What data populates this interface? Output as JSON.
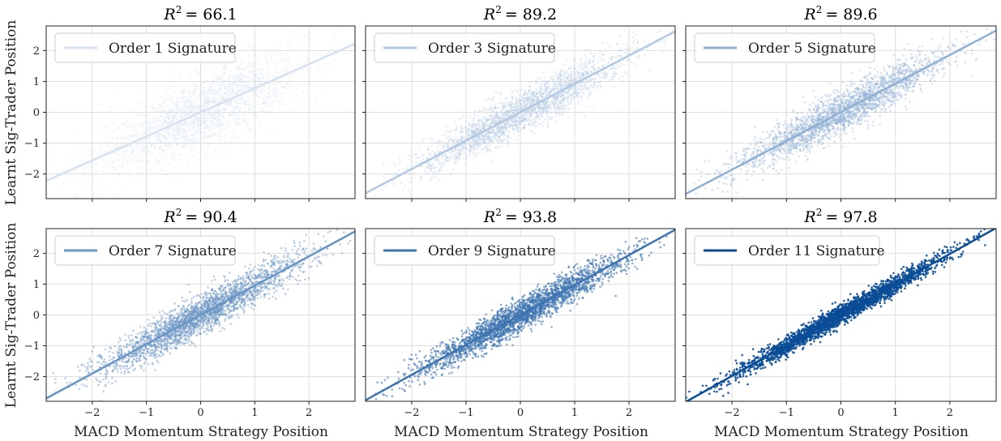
{
  "figure": {
    "ylabel": "Learnt Sig-Trader Position",
    "xlabel": "MACD Momentum Strategy Position"
  },
  "chart_data": [
    {
      "type": "scatter",
      "title_prefix": "R",
      "title_sup": "2",
      "title_value": "= 66.1",
      "legend": "Order 1 Signature",
      "r2": 66.1,
      "slope": 0.78,
      "color": "#d6e2ef",
      "alpha": 0.25,
      "xlim": [
        -2.85,
        2.85
      ],
      "ylim": [
        -2.8,
        2.8
      ],
      "xticks": [
        -2,
        -1,
        0,
        1,
        2
      ],
      "yticks": [
        -2,
        -1,
        0,
        1,
        2
      ],
      "grid": true,
      "legend_loc": "upper-left"
    },
    {
      "type": "scatter",
      "title_prefix": "R",
      "title_sup": "2",
      "title_value": "= 89.2",
      "legend": "Order 3 Signature",
      "r2": 89.2,
      "slope": 0.92,
      "color": "#b3c9e1",
      "alpha": 0.3,
      "xlim": [
        -2.85,
        2.85
      ],
      "ylim": [
        -2.8,
        2.8
      ],
      "xticks": [
        -2,
        -1,
        0,
        1,
        2
      ],
      "yticks": [
        -2,
        -1,
        0,
        1,
        2
      ],
      "grid": true,
      "legend_loc": "upper-left"
    },
    {
      "type": "scatter",
      "title_prefix": "R",
      "title_sup": "2",
      "title_value": "= 89.6",
      "legend": "Order 5 Signature",
      "r2": 89.6,
      "slope": 0.93,
      "color": "#90b0d3",
      "alpha": 0.35,
      "xlim": [
        -2.85,
        2.85
      ],
      "ylim": [
        -2.8,
        2.8
      ],
      "xticks": [
        -2,
        -1,
        0,
        1,
        2
      ],
      "yticks": [
        -2,
        -1,
        0,
        1,
        2
      ],
      "grid": true,
      "legend_loc": "upper-left"
    },
    {
      "type": "scatter",
      "title_prefix": "R",
      "title_sup": "2",
      "title_value": "= 90.4",
      "legend": "Order 7 Signature",
      "r2": 90.4,
      "slope": 0.95,
      "color": "#6b95c4",
      "alpha": 0.45,
      "xlim": [
        -2.85,
        2.85
      ],
      "ylim": [
        -2.8,
        2.8
      ],
      "xticks": [
        -2,
        -1,
        0,
        1,
        2
      ],
      "yticks": [
        -2,
        -1,
        0,
        1,
        2
      ],
      "grid": true,
      "legend_loc": "upper-left"
    },
    {
      "type": "scatter",
      "title_prefix": "R",
      "title_sup": "2",
      "title_value": "= 93.8",
      "legend": "Order 9 Signature",
      "r2": 93.8,
      "slope": 0.97,
      "color": "#3d74b0",
      "alpha": 0.6,
      "xlim": [
        -2.85,
        2.85
      ],
      "ylim": [
        -2.8,
        2.8
      ],
      "xticks": [
        -2,
        -1,
        0,
        1,
        2
      ],
      "yticks": [
        -2,
        -1,
        0,
        1,
        2
      ],
      "grid": true,
      "legend_loc": "upper-left"
    },
    {
      "type": "scatter",
      "title_prefix": "R",
      "title_sup": "2",
      "title_value": "= 97.8",
      "legend": "Order 11 Signature",
      "r2": 97.8,
      "slope": 0.99,
      "color": "#0a4d96",
      "alpha": 0.9,
      "xlim": [
        -2.85,
        2.85
      ],
      "ylim": [
        -2.8,
        2.8
      ],
      "xticks": [
        -2,
        -1,
        0,
        1,
        2
      ],
      "yticks": [
        -2,
        -1,
        0,
        1,
        2
      ],
      "grid": true,
      "legend_loc": "upper-left"
    }
  ]
}
